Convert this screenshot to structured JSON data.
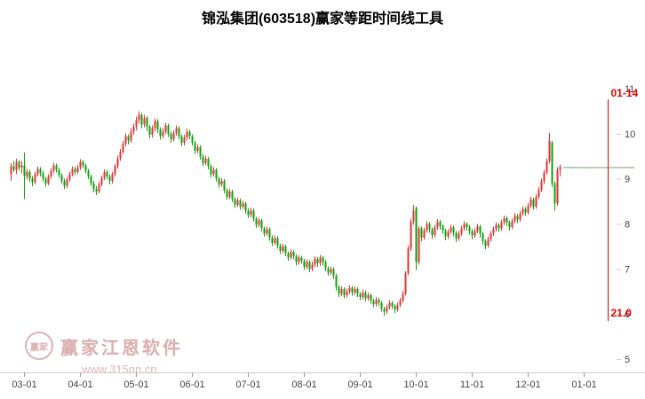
{
  "title": "锦泓集团(603518)赢家等距时间线工具",
  "watermark": {
    "logo_text": "赢家",
    "brand": "赢家江恩软件",
    "site": "www.315nn.cn"
  },
  "chart_data": {
    "type": "candlestick",
    "title": "锦泓集团(603518)赢家等距时间线工具",
    "x_tick_labels": [
      "03-01",
      "04-01",
      "05-01",
      "06-01",
      "07-01",
      "08-01",
      "09-01",
      "10-01",
      "11-01",
      "12-01",
      "01-01"
    ],
    "x_tick_first_candle_index": 5,
    "candles_per_month": 21,
    "y_ticks": [
      5,
      6,
      7,
      8,
      9,
      10,
      11
    ],
    "ylim": [
      5,
      11
    ],
    "y_axis_side": "right",
    "grid": false,
    "price_line": {
      "value": 9.26
    },
    "vline": {
      "index": 224,
      "date_label": "01-14",
      "count_label": "21.0"
    },
    "colors": {
      "up": "#e03333",
      "down": "#0ca00c",
      "vline": "#e60000",
      "price_line": "#7a997a",
      "axis": "#cccccc",
      "tick": "#999999",
      "text": "#444444",
      "watermark": "#d9aaaa"
    },
    "ohlc": [
      [
        9.1,
        9.35,
        8.95,
        9.28
      ],
      [
        9.28,
        9.4,
        9.15,
        9.2
      ],
      [
        9.2,
        9.45,
        9.1,
        9.38
      ],
      [
        9.38,
        9.42,
        9.18,
        9.25
      ],
      [
        9.25,
        9.4,
        9.12,
        9.3
      ],
      [
        9.3,
        9.58,
        8.55,
        9.05
      ],
      [
        9.05,
        9.22,
        8.98,
        9.15
      ],
      [
        9.15,
        9.2,
        8.92,
        9.0
      ],
      [
        9.0,
        9.06,
        8.84,
        8.92
      ],
      [
        8.92,
        9.16,
        8.88,
        9.1
      ],
      [
        9.1,
        9.28,
        9.05,
        9.22
      ],
      [
        9.22,
        9.26,
        9.05,
        9.12
      ],
      [
        9.12,
        9.18,
        8.94,
        9.0
      ],
      [
        9.0,
        9.04,
        8.83,
        8.9
      ],
      [
        8.9,
        9.1,
        8.86,
        9.05
      ],
      [
        9.05,
        9.24,
        9.0,
        9.18
      ],
      [
        9.18,
        9.36,
        9.12,
        9.3
      ],
      [
        9.3,
        9.34,
        9.14,
        9.2
      ],
      [
        9.2,
        9.24,
        9.02,
        9.08
      ],
      [
        9.08,
        9.12,
        8.89,
        8.95
      ],
      [
        8.95,
        9.0,
        8.78,
        8.85
      ],
      [
        8.85,
        9.04,
        8.8,
        8.98
      ],
      [
        8.98,
        9.16,
        8.93,
        9.1
      ],
      [
        9.1,
        9.28,
        9.05,
        9.22
      ],
      [
        9.22,
        9.27,
        9.08,
        9.15
      ],
      [
        9.15,
        9.31,
        9.1,
        9.25
      ],
      [
        9.25,
        9.44,
        9.2,
        9.38
      ],
      [
        9.38,
        9.42,
        9.24,
        9.3
      ],
      [
        9.3,
        9.34,
        9.12,
        9.18
      ],
      [
        9.18,
        9.22,
        8.99,
        9.05
      ],
      [
        9.05,
        9.09,
        8.84,
        8.9
      ],
      [
        8.9,
        8.95,
        8.7,
        8.78
      ],
      [
        8.78,
        8.84,
        8.64,
        8.72
      ],
      [
        8.72,
        8.93,
        8.68,
        8.88
      ],
      [
        8.88,
        9.07,
        8.83,
        9.02
      ],
      [
        9.02,
        9.21,
        8.97,
        9.15
      ],
      [
        9.15,
        9.19,
        8.99,
        9.05
      ],
      [
        9.05,
        9.1,
        8.88,
        8.95
      ],
      [
        8.95,
        9.15,
        8.9,
        9.1
      ],
      [
        9.1,
        9.33,
        9.05,
        9.28
      ],
      [
        9.28,
        9.51,
        9.23,
        9.45
      ],
      [
        9.45,
        9.66,
        9.4,
        9.6
      ],
      [
        9.6,
        9.84,
        9.55,
        9.78
      ],
      [
        9.78,
        10.01,
        9.72,
        9.95
      ],
      [
        9.95,
        9.99,
        9.76,
        9.85
      ],
      [
        9.85,
        10.12,
        9.8,
        10.05
      ],
      [
        10.05,
        10.22,
        9.98,
        10.15
      ],
      [
        10.15,
        10.38,
        10.08,
        10.3
      ],
      [
        10.3,
        10.5,
        10.22,
        10.42
      ],
      [
        10.42,
        10.46,
        10.12,
        10.2
      ],
      [
        10.2,
        10.42,
        10.14,
        10.35
      ],
      [
        10.35,
        10.39,
        10.06,
        10.15
      ],
      [
        10.15,
        10.19,
        9.9,
        9.98
      ],
      [
        9.98,
        10.18,
        9.92,
        10.12
      ],
      [
        10.12,
        10.34,
        10.06,
        10.28
      ],
      [
        10.28,
        10.32,
        10.02,
        10.1
      ],
      [
        10.1,
        10.14,
        9.87,
        9.95
      ],
      [
        9.95,
        10.12,
        9.89,
        10.05
      ],
      [
        10.05,
        10.24,
        10.0,
        10.18
      ],
      [
        10.18,
        10.22,
        9.93,
        10.0
      ],
      [
        10.0,
        10.05,
        9.8,
        9.88
      ],
      [
        9.88,
        10.08,
        9.83,
        10.02
      ],
      [
        10.02,
        10.18,
        9.96,
        10.12
      ],
      [
        10.12,
        10.16,
        9.88,
        9.95
      ],
      [
        9.95,
        9.99,
        9.73,
        9.8
      ],
      [
        9.8,
        9.98,
        9.74,
        9.92
      ],
      [
        9.92,
        10.11,
        9.86,
        10.05
      ],
      [
        10.05,
        10.09,
        9.88,
        9.95
      ],
      [
        9.95,
        9.99,
        9.74,
        9.8
      ],
      [
        9.8,
        9.84,
        9.55,
        9.62
      ],
      [
        9.62,
        9.76,
        9.56,
        9.7
      ],
      [
        9.7,
        9.74,
        9.43,
        9.5
      ],
      [
        9.5,
        9.54,
        9.28,
        9.35
      ],
      [
        9.35,
        9.51,
        9.3,
        9.45
      ],
      [
        9.45,
        9.49,
        9.21,
        9.28
      ],
      [
        9.28,
        9.32,
        9.03,
        9.1
      ],
      [
        9.1,
        9.26,
        9.05,
        9.2
      ],
      [
        9.2,
        9.24,
        8.93,
        9.0
      ],
      [
        9.0,
        9.04,
        8.81,
        8.88
      ],
      [
        8.88,
        9.01,
        8.83,
        8.95
      ],
      [
        8.95,
        8.99,
        8.68,
        8.75
      ],
      [
        8.75,
        8.79,
        8.53,
        8.6
      ],
      [
        8.6,
        8.78,
        8.55,
        8.72
      ],
      [
        8.72,
        8.76,
        8.48,
        8.55
      ],
      [
        8.55,
        8.59,
        8.35,
        8.42
      ],
      [
        8.42,
        8.58,
        8.37,
        8.52
      ],
      [
        8.52,
        8.56,
        8.31,
        8.38
      ],
      [
        8.38,
        8.51,
        8.33,
        8.45
      ],
      [
        8.45,
        8.49,
        8.23,
        8.3
      ],
      [
        8.3,
        8.34,
        8.13,
        8.2
      ],
      [
        8.2,
        8.36,
        8.15,
        8.3
      ],
      [
        8.3,
        8.34,
        8.05,
        8.12
      ],
      [
        8.12,
        8.16,
        7.91,
        7.98
      ],
      [
        7.98,
        8.14,
        7.93,
        8.08
      ],
      [
        8.08,
        8.12,
        7.83,
        7.9
      ],
      [
        7.9,
        7.94,
        7.71,
        7.78
      ],
      [
        7.78,
        7.94,
        7.73,
        7.88
      ],
      [
        7.88,
        7.92,
        7.63,
        7.7
      ],
      [
        7.7,
        7.74,
        7.51,
        7.58
      ],
      [
        7.58,
        7.74,
        7.53,
        7.68
      ],
      [
        7.68,
        7.72,
        7.45,
        7.52
      ],
      [
        7.52,
        7.56,
        7.33,
        7.4
      ],
      [
        7.4,
        7.56,
        7.35,
        7.5
      ],
      [
        7.5,
        7.54,
        7.28,
        7.35
      ],
      [
        7.35,
        7.39,
        7.18,
        7.25
      ],
      [
        7.25,
        7.44,
        7.2,
        7.38
      ],
      [
        7.38,
        7.42,
        7.21,
        7.28
      ],
      [
        7.28,
        7.32,
        7.08,
        7.15
      ],
      [
        7.15,
        7.31,
        7.1,
        7.25
      ],
      [
        7.25,
        7.29,
        7.11,
        7.18
      ],
      [
        7.18,
        7.22,
        6.98,
        7.05
      ],
      [
        7.05,
        7.21,
        7.0,
        7.15
      ],
      [
        7.15,
        7.19,
        6.93,
        7.0
      ],
      [
        7.0,
        7.16,
        6.95,
        7.1
      ],
      [
        7.1,
        7.28,
        7.05,
        7.22
      ],
      [
        7.22,
        7.26,
        7.05,
        7.12
      ],
      [
        7.12,
        7.31,
        7.07,
        7.25
      ],
      [
        7.25,
        7.29,
        7.08,
        7.15
      ],
      [
        7.15,
        7.19,
        6.95,
        7.02
      ],
      [
        7.02,
        7.06,
        6.85,
        6.92
      ],
      [
        6.92,
        7.06,
        6.87,
        7.0
      ],
      [
        7.0,
        7.04,
        6.78,
        6.85
      ],
      [
        6.85,
        6.89,
        6.52,
        6.6
      ],
      [
        6.6,
        6.64,
        6.38,
        6.45
      ],
      [
        6.45,
        6.61,
        6.4,
        6.55
      ],
      [
        6.55,
        6.59,
        6.35,
        6.42
      ],
      [
        6.42,
        6.56,
        6.37,
        6.5
      ],
      [
        6.5,
        6.64,
        6.45,
        6.58
      ],
      [
        6.58,
        6.62,
        6.41,
        6.48
      ],
      [
        6.48,
        6.61,
        6.43,
        6.55
      ],
      [
        6.55,
        6.59,
        6.38,
        6.45
      ],
      [
        6.45,
        6.49,
        6.31,
        6.38
      ],
      [
        6.38,
        6.54,
        6.33,
        6.48
      ],
      [
        6.48,
        6.52,
        6.28,
        6.35
      ],
      [
        6.35,
        6.48,
        6.3,
        6.42
      ],
      [
        6.42,
        6.46,
        6.23,
        6.3
      ],
      [
        6.3,
        6.34,
        6.15,
        6.22
      ],
      [
        6.22,
        6.38,
        6.17,
        6.32
      ],
      [
        6.32,
        6.36,
        6.18,
        6.25
      ],
      [
        6.25,
        6.29,
        6.05,
        6.12
      ],
      [
        6.12,
        6.16,
        5.96,
        6.05
      ],
      [
        6.05,
        6.21,
        6.0,
        6.15
      ],
      [
        6.15,
        6.31,
        6.1,
        6.25
      ],
      [
        6.25,
        6.29,
        6.11,
        6.18
      ],
      [
        6.18,
        6.22,
        6.02,
        6.1
      ],
      [
        6.1,
        6.26,
        6.05,
        6.2
      ],
      [
        6.2,
        6.36,
        6.15,
        6.3
      ],
      [
        6.3,
        6.51,
        6.25,
        6.45
      ],
      [
        6.45,
        6.95,
        6.42,
        6.9
      ],
      [
        6.9,
        7.52,
        6.86,
        7.45
      ],
      [
        7.45,
        8.12,
        7.4,
        8.05
      ],
      [
        8.05,
        8.42,
        7.98,
        8.3
      ],
      [
        8.35,
        8.38,
        6.98,
        7.15
      ],
      [
        7.15,
        7.95,
        7.1,
        7.9
      ],
      [
        7.9,
        7.94,
        7.62,
        7.7
      ],
      [
        7.7,
        7.91,
        7.65,
        7.85
      ],
      [
        7.85,
        8.06,
        7.8,
        8.0
      ],
      [
        8.0,
        8.04,
        7.8,
        7.88
      ],
      [
        7.88,
        7.92,
        7.67,
        7.75
      ],
      [
        7.75,
        7.98,
        7.7,
        7.92
      ],
      [
        7.92,
        8.11,
        7.87,
        8.05
      ],
      [
        8.05,
        8.09,
        7.87,
        7.95
      ],
      [
        7.95,
        7.99,
        7.77,
        7.85
      ],
      [
        7.85,
        7.89,
        7.64,
        7.72
      ],
      [
        7.72,
        7.88,
        7.67,
        7.82
      ],
      [
        7.82,
        7.98,
        7.77,
        7.92
      ],
      [
        7.92,
        7.96,
        7.72,
        7.8
      ],
      [
        7.8,
        7.84,
        7.6,
        7.68
      ],
      [
        7.68,
        7.84,
        7.63,
        7.78
      ],
      [
        7.78,
        7.96,
        7.73,
        7.9
      ],
      [
        7.9,
        8.06,
        7.85,
        8.0
      ],
      [
        8.0,
        8.04,
        7.85,
        7.93
      ],
      [
        7.93,
        7.97,
        7.76,
        7.84
      ],
      [
        7.84,
        7.88,
        7.66,
        7.74
      ],
      [
        7.74,
        7.9,
        7.69,
        7.84
      ],
      [
        7.84,
        8.0,
        7.79,
        7.94
      ],
      [
        7.94,
        7.98,
        7.7,
        7.78
      ],
      [
        7.78,
        7.82,
        7.54,
        7.62
      ],
      [
        7.62,
        7.66,
        7.44,
        7.52
      ],
      [
        7.52,
        7.72,
        7.47,
        7.66
      ],
      [
        7.66,
        7.84,
        7.61,
        7.78
      ],
      [
        7.78,
        7.94,
        7.73,
        7.88
      ],
      [
        7.88,
        8.04,
        7.83,
        7.98
      ],
      [
        7.98,
        8.02,
        7.82,
        7.9
      ],
      [
        7.9,
        8.09,
        7.85,
        8.03
      ],
      [
        8.03,
        8.19,
        7.98,
        8.13
      ],
      [
        8.13,
        8.17,
        7.95,
        8.03
      ],
      [
        8.03,
        8.07,
        7.85,
        7.93
      ],
      [
        7.93,
        8.12,
        7.88,
        8.06
      ],
      [
        8.06,
        8.24,
        8.01,
        8.18
      ],
      [
        8.18,
        8.22,
        8.02,
        8.1
      ],
      [
        8.1,
        8.29,
        8.05,
        8.23
      ],
      [
        8.23,
        8.39,
        8.18,
        8.33
      ],
      [
        8.33,
        8.37,
        8.18,
        8.26
      ],
      [
        8.26,
        8.46,
        8.21,
        8.4
      ],
      [
        8.4,
        8.6,
        8.35,
        8.54
      ],
      [
        8.54,
        8.58,
        8.31,
        8.38
      ],
      [
        8.38,
        8.66,
        8.33,
        8.6
      ],
      [
        8.6,
        8.82,
        8.55,
        8.76
      ],
      [
        8.76,
        9.0,
        8.71,
        8.94
      ],
      [
        8.94,
        9.2,
        8.89,
        9.14
      ],
      [
        9.14,
        9.46,
        9.09,
        9.4
      ],
      [
        9.4,
        10.02,
        9.35,
        9.85
      ],
      [
        9.8,
        9.84,
        8.82,
        8.9
      ],
      [
        8.9,
        8.94,
        8.3,
        8.45
      ],
      [
        8.45,
        9.26,
        8.4,
        9.2
      ],
      [
        9.2,
        9.32,
        9.05,
        9.26
      ]
    ]
  }
}
